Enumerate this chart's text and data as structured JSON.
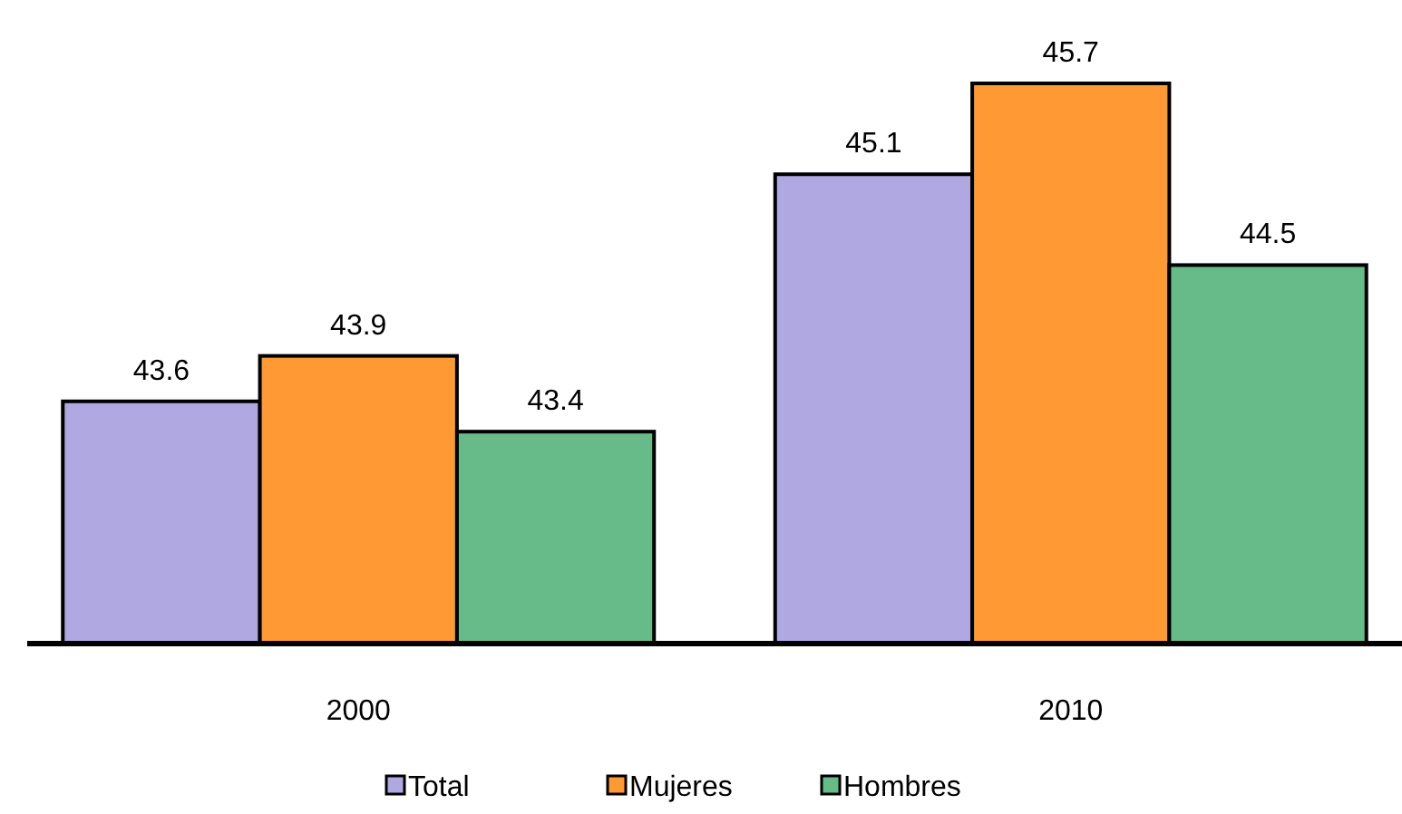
{
  "chart_data": {
    "type": "bar",
    "categories": [
      "2000",
      "2010"
    ],
    "series": [
      {
        "name": "Total",
        "color": "#b0a8e0",
        "values": [
          43.6,
          45.1
        ]
      },
      {
        "name": "Mujeres",
        "color": "#ff9933",
        "values": [
          43.9,
          45.7
        ]
      },
      {
        "name": "Hombres",
        "color": "#66bb88",
        "values": [
          43.4,
          44.5
        ]
      }
    ],
    "ylim": [
      42,
      45.7
    ],
    "tick_labels": "x",
    "data_labels": true,
    "legend": "bottom"
  }
}
